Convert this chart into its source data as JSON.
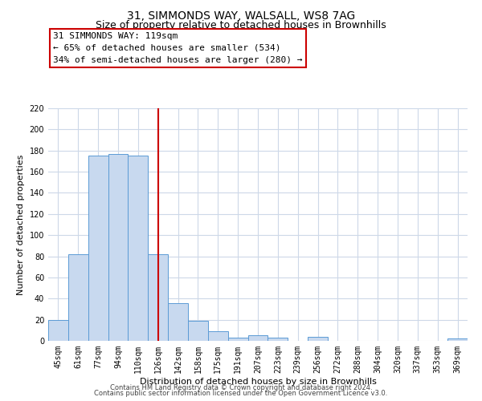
{
  "title": "31, SIMMONDS WAY, WALSALL, WS8 7AG",
  "subtitle": "Size of property relative to detached houses in Brownhills",
  "xlabel": "Distribution of detached houses by size in Brownhills",
  "ylabel": "Number of detached properties",
  "bin_labels": [
    "45sqm",
    "61sqm",
    "77sqm",
    "94sqm",
    "110sqm",
    "126sqm",
    "142sqm",
    "158sqm",
    "175sqm",
    "191sqm",
    "207sqm",
    "223sqm",
    "239sqm",
    "256sqm",
    "272sqm",
    "288sqm",
    "304sqm",
    "320sqm",
    "337sqm",
    "353sqm",
    "369sqm"
  ],
  "bar_values": [
    20,
    82,
    175,
    177,
    175,
    82,
    36,
    19,
    9,
    3,
    5,
    3,
    0,
    4,
    0,
    0,
    0,
    0,
    0,
    0,
    2
  ],
  "bar_color": "#c8d9ef",
  "bar_edge_color": "#5b9bd5",
  "vline_color": "#cc0000",
  "vline_pos": 5.0,
  "ylim": [
    0,
    220
  ],
  "yticks": [
    0,
    20,
    40,
    60,
    80,
    100,
    120,
    140,
    160,
    180,
    200,
    220
  ],
  "annotation_title": "31 SIMMONDS WAY: 119sqm",
  "annotation_line1": "← 65% of detached houses are smaller (534)",
  "annotation_line2": "34% of semi-detached houses are larger (280) →",
  "annotation_box_color": "#ffffff",
  "annotation_box_edge": "#cc0000",
  "footer1": "Contains HM Land Registry data © Crown copyright and database right 2024.",
  "footer2": "Contains public sector information licensed under the Open Government Licence v3.0.",
  "bg_color": "#ffffff",
  "grid_color": "#cdd8e8",
  "title_fontsize": 10,
  "subtitle_fontsize": 9,
  "axis_label_fontsize": 8,
  "tick_fontsize": 7,
  "annotation_fontsize": 8,
  "footer_fontsize": 6
}
